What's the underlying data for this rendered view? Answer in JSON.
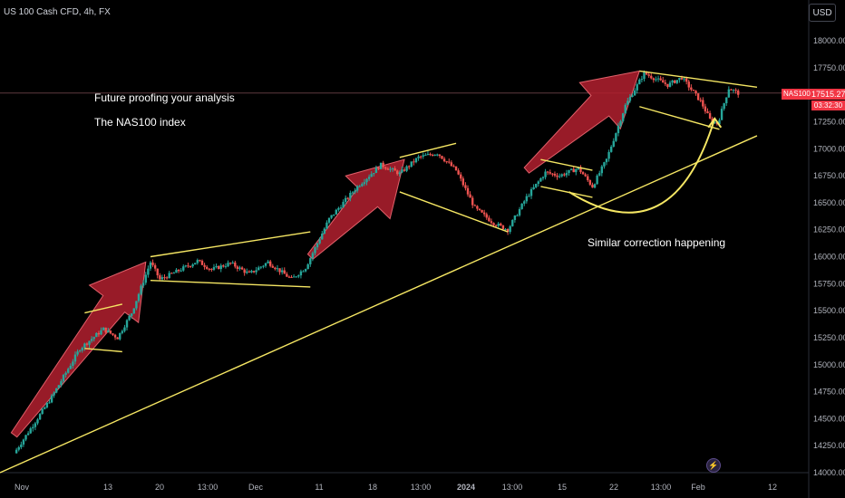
{
  "header": {
    "symbol_title": "US 100 Cash CFD, 4h, FX",
    "currency": "USD"
  },
  "annotations": {
    "line1": "Future proofing your analysis",
    "line2": "The NAS100 index",
    "line3": "Similar correction happening"
  },
  "price_scale": {
    "symbol_tag": "NAS100",
    "last_price": "17515.27",
    "countdown": "03:32:30"
  },
  "icons": {
    "bolt": "lightning-bolt-icon"
  },
  "colors": {
    "background": "#000000",
    "up_candle": "#26a69a",
    "down_candle": "#ef5350",
    "trendline": "#f5e663",
    "arrow_fill": "#b3202f",
    "axis_text": "#b2b5be",
    "price_label": "#f23645"
  },
  "chart_data": {
    "type": "candlestick",
    "title": "US 100 Cash CFD, 4h, FX",
    "ylim": [
      14000,
      18250
    ],
    "y_ticks": [
      14000,
      14250,
      14500,
      14750,
      15000,
      15250,
      15500,
      15750,
      16000,
      16250,
      16500,
      16750,
      17000,
      17250,
      17500,
      17750,
      18000
    ],
    "x_ticks": [
      "Nov",
      "13",
      "20",
      "13:00",
      "Dec",
      "11",
      "18",
      "13:00",
      "2024",
      "13:00",
      "15",
      "22",
      "13:00",
      "Feb",
      "12"
    ],
    "x_bold_ticks": [
      "2024"
    ],
    "last_price": 17515.27,
    "price_path": [
      {
        "t": 0.0,
        "p": 14180
      },
      {
        "t": 4.0,
        "p": 14700
      },
      {
        "t": 7.0,
        "p": 15150
      },
      {
        "t": 9.5,
        "p": 15330
      },
      {
        "t": 11.0,
        "p": 15250
      },
      {
        "t": 12.5,
        "p": 15480
      },
      {
        "t": 14.5,
        "p": 15950
      },
      {
        "t": 15.5,
        "p": 15790
      },
      {
        "t": 17.0,
        "p": 15850
      },
      {
        "t": 19.5,
        "p": 15960
      },
      {
        "t": 21.0,
        "p": 15880
      },
      {
        "t": 23.0,
        "p": 15940
      },
      {
        "t": 25.0,
        "p": 15840
      },
      {
        "t": 27.0,
        "p": 15950
      },
      {
        "t": 29.5,
        "p": 15790
      },
      {
        "t": 31.0,
        "p": 15900
      },
      {
        "t": 33.5,
        "p": 16350
      },
      {
        "t": 36.5,
        "p": 16650
      },
      {
        "t": 39.0,
        "p": 16850
      },
      {
        "t": 41.0,
        "p": 16770
      },
      {
        "t": 43.0,
        "p": 16920
      },
      {
        "t": 45.0,
        "p": 16960
      },
      {
        "t": 47.0,
        "p": 16800
      },
      {
        "t": 49.0,
        "p": 16450
      },
      {
        "t": 51.0,
        "p": 16310
      },
      {
        "t": 52.5,
        "p": 16250
      },
      {
        "t": 54.5,
        "p": 16550
      },
      {
        "t": 56.5,
        "p": 16780
      },
      {
        "t": 58.0,
        "p": 16750
      },
      {
        "t": 60.0,
        "p": 16820
      },
      {
        "t": 61.5,
        "p": 16650
      },
      {
        "t": 63.0,
        "p": 16900
      },
      {
        "t": 65.0,
        "p": 17400
      },
      {
        "t": 67.0,
        "p": 17700
      },
      {
        "t": 69.5,
        "p": 17590
      },
      {
        "t": 71.0,
        "p": 17660
      },
      {
        "t": 73.0,
        "p": 17440
      },
      {
        "t": 74.0,
        "p": 17270
      },
      {
        "t": 74.8,
        "p": 17230
      },
      {
        "t": 76.0,
        "p": 17560
      },
      {
        "t": 77.0,
        "p": 17515
      }
    ],
    "trendlines": [
      {
        "name": "long-term-support",
        "from": [
          -1.5,
          14000
        ],
        "to": [
          79,
          17120
        ]
      },
      {
        "name": "range-1-top",
        "from": [
          14.5,
          16000
        ],
        "to": [
          31.5,
          16230
        ]
      },
      {
        "name": "range-1-bottom",
        "from": [
          14.5,
          15780
        ],
        "to": [
          31.5,
          15720
        ]
      },
      {
        "name": "channel-upper",
        "from": [
          7.5,
          15480
        ],
        "to": [
          11.5,
          15560
        ]
      },
      {
        "name": "channel-lower",
        "from": [
          7.5,
          15150
        ],
        "to": [
          11.5,
          15120
        ]
      },
      {
        "name": "range-2-top",
        "from": [
          41.0,
          16920
        ],
        "to": [
          47.0,
          17050
        ]
      },
      {
        "name": "range-2-bottom",
        "from": [
          41.0,
          16600
        ],
        "to": [
          52.5,
          16230
        ]
      },
      {
        "name": "range-3-top",
        "from": [
          56.0,
          16900
        ],
        "to": [
          61.5,
          16800
        ]
      },
      {
        "name": "range-3-bottom",
        "from": [
          56.0,
          16650
        ],
        "to": [
          61.5,
          16550
        ]
      },
      {
        "name": "wedge-top",
        "from": [
          66.5,
          17720
        ],
        "to": [
          79,
          17570
        ]
      },
      {
        "name": "wedge-bottom",
        "from": [
          66.5,
          17390
        ],
        "to": [
          75.0,
          17180
        ]
      }
    ],
    "arrows": [
      {
        "name": "rally-arrow-1",
        "from": [
          0.0,
          14350
        ],
        "to": [
          14.0,
          15950
        ]
      },
      {
        "name": "rally-arrow-2",
        "from": [
          31.5,
          16000
        ],
        "to": [
          41.5,
          16900
        ]
      },
      {
        "name": "rally-arrow-3",
        "from": [
          54.5,
          16800
        ],
        "to": [
          66.5,
          17720
        ]
      }
    ],
    "curved_arrow": {
      "from": [
        59.0,
        16600
      ],
      "control": [
        70.0,
        16000
      ],
      "to": [
        74.5,
        17280
      ]
    }
  }
}
